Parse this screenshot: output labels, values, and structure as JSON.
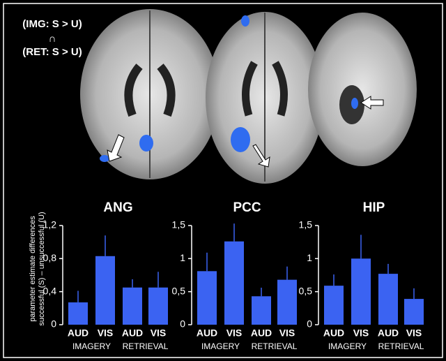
{
  "figure": {
    "contrast_lines": [
      "(IMG: S > U)",
      "∩",
      "(RET: S > U)"
    ]
  },
  "chart_data": [
    {
      "type": "bar",
      "title": "ANG",
      "ylabel": [
        "parameter estimate differences",
        "successful (S) – unsuccessful (U)"
      ],
      "categories": [
        "AUD",
        "VIS",
        "AUD",
        "VIS"
      ],
      "groups": [
        "IMAGERY",
        "RETRIEVAL"
      ],
      "values": [
        0.27,
        0.83,
        0.45,
        0.45
      ],
      "errors": [
        0.14,
        0.25,
        0.1,
        0.19
      ],
      "color": "#3b63f2",
      "ylim": [
        0,
        1.2
      ],
      "yticks": [
        0,
        {
          "value": 0.4,
          "label": "0,4"
        },
        {
          "value": 0.8,
          "label": "0,8"
        },
        {
          "value": 1.2,
          "label": "1,2"
        }
      ]
    },
    {
      "type": "bar",
      "title": "PCC",
      "categories": [
        "AUD",
        "VIS",
        "AUD",
        "VIS"
      ],
      "groups": [
        "IMAGERY",
        "RETRIEVAL"
      ],
      "values": [
        0.81,
        1.26,
        0.43,
        0.68
      ],
      "errors": [
        0.28,
        0.27,
        0.13,
        0.2
      ],
      "color": "#3b63f2",
      "ylim": [
        0,
        1.5
      ],
      "yticks": [
        0,
        {
          "value": 0.5,
          "label": "0,5"
        },
        1,
        {
          "value": 1.5,
          "label": "1,5"
        }
      ]
    },
    {
      "type": "bar",
      "title": "HIP",
      "categories": [
        "AUD",
        "VIS",
        "AUD",
        "VIS"
      ],
      "groups": [
        "IMAGERY",
        "RETRIEVAL"
      ],
      "values": [
        0.59,
        1.0,
        0.77,
        0.39
      ],
      "errors": [
        0.17,
        0.36,
        0.15,
        0.16
      ],
      "color": "#3b63f2",
      "ylim": [
        0,
        1.5
      ],
      "yticks": [
        0,
        {
          "value": 0.5,
          "label": "0,5"
        },
        1,
        {
          "value": 1.5,
          "label": "1,5"
        }
      ]
    }
  ]
}
